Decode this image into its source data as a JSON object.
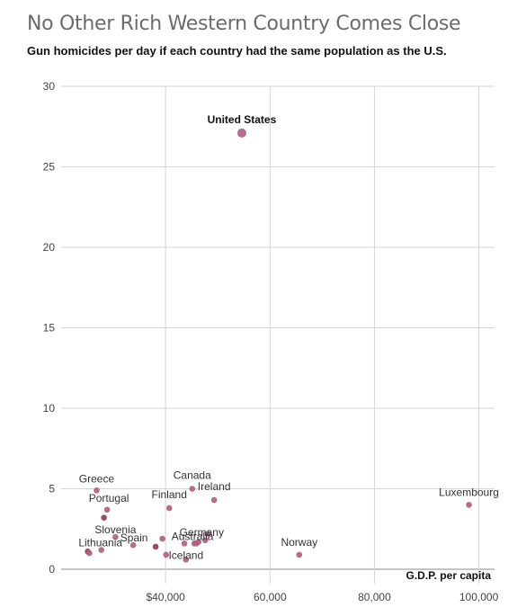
{
  "header": {
    "title": "No Other Rich Western Country Comes Close",
    "subtitle": "Gun homicides per day if each country had the same population as the U.S."
  },
  "colors": {
    "point": "#b06080",
    "point_dark": "#8c3f5c",
    "grid": "#d6d6d6",
    "axis": "#888888"
  },
  "chart_data": {
    "type": "scatter",
    "title": "No Other Rich Western Country Comes Close",
    "subtitle": "Gun homicides per day if each country had the same population as the U.S.",
    "xlabel": "G.D.P. per capita",
    "ylabel": "",
    "xlim": [
      20000,
      103000
    ],
    "ylim": [
      0,
      30
    ],
    "grid": true,
    "x_ticks": [
      {
        "value": 40000,
        "label": "$40,000"
      },
      {
        "value": 60000,
        "label": "60,000"
      },
      {
        "value": 80000,
        "label": "80,000"
      },
      {
        "value": 100000,
        "label": "100,000"
      }
    ],
    "y_ticks": [
      {
        "value": 0,
        "label": "0"
      },
      {
        "value": 5,
        "label": "5"
      },
      {
        "value": 10,
        "label": "10"
      },
      {
        "value": 15,
        "label": "15"
      },
      {
        "value": 20,
        "label": "20"
      },
      {
        "value": 25,
        "label": "25"
      },
      {
        "value": 30,
        "label": "30"
      }
    ],
    "points": [
      {
        "label": "United States",
        "x": 54600,
        "y": 27.1,
        "highlight": true
      },
      {
        "label": "Luxembourg",
        "x": 98100,
        "y": 4.0
      },
      {
        "label": "Norway",
        "x": 65600,
        "y": 0.9
      },
      {
        "label": "Canada",
        "x": 45100,
        "y": 5.0
      },
      {
        "label": "Ireland",
        "x": 49300,
        "y": 4.3
      },
      {
        "label": "Finland",
        "x": 40700,
        "y": 3.8
      },
      {
        "label": "Germany",
        "x": 47600,
        "y": 1.8
      },
      {
        "label": "Australia",
        "x": 45500,
        "y": 1.6
      },
      {
        "label": "Iceland",
        "x": 43900,
        "y": 0.6
      },
      {
        "label": "Greece",
        "x": 26800,
        "y": 4.9
      },
      {
        "label": "Portugal",
        "x": 28800,
        "y": 3.7
      },
      {
        "label": "Slovenia",
        "x": 30400,
        "y": 2.0
      },
      {
        "label": "Spain",
        "x": 33800,
        "y": 1.5
      },
      {
        "label": "Lithuania",
        "x": 27700,
        "y": 1.2
      },
      {
        "label": "",
        "x": 25100,
        "y": 1.1
      },
      {
        "label": "",
        "x": 25400,
        "y": 1.0
      },
      {
        "label": "",
        "x": 28200,
        "y": 3.2
      },
      {
        "label": "",
        "x": 38100,
        "y": 1.4
      },
      {
        "label": "",
        "x": 39400,
        "y": 1.9
      },
      {
        "label": "",
        "x": 40100,
        "y": 0.9
      },
      {
        "label": "",
        "x": 43600,
        "y": 1.6
      },
      {
        "label": "",
        "x": 45900,
        "y": 1.6
      },
      {
        "label": "",
        "x": 46300,
        "y": 1.7
      },
      {
        "label": "",
        "x": 48100,
        "y": 2.2
      }
    ]
  }
}
